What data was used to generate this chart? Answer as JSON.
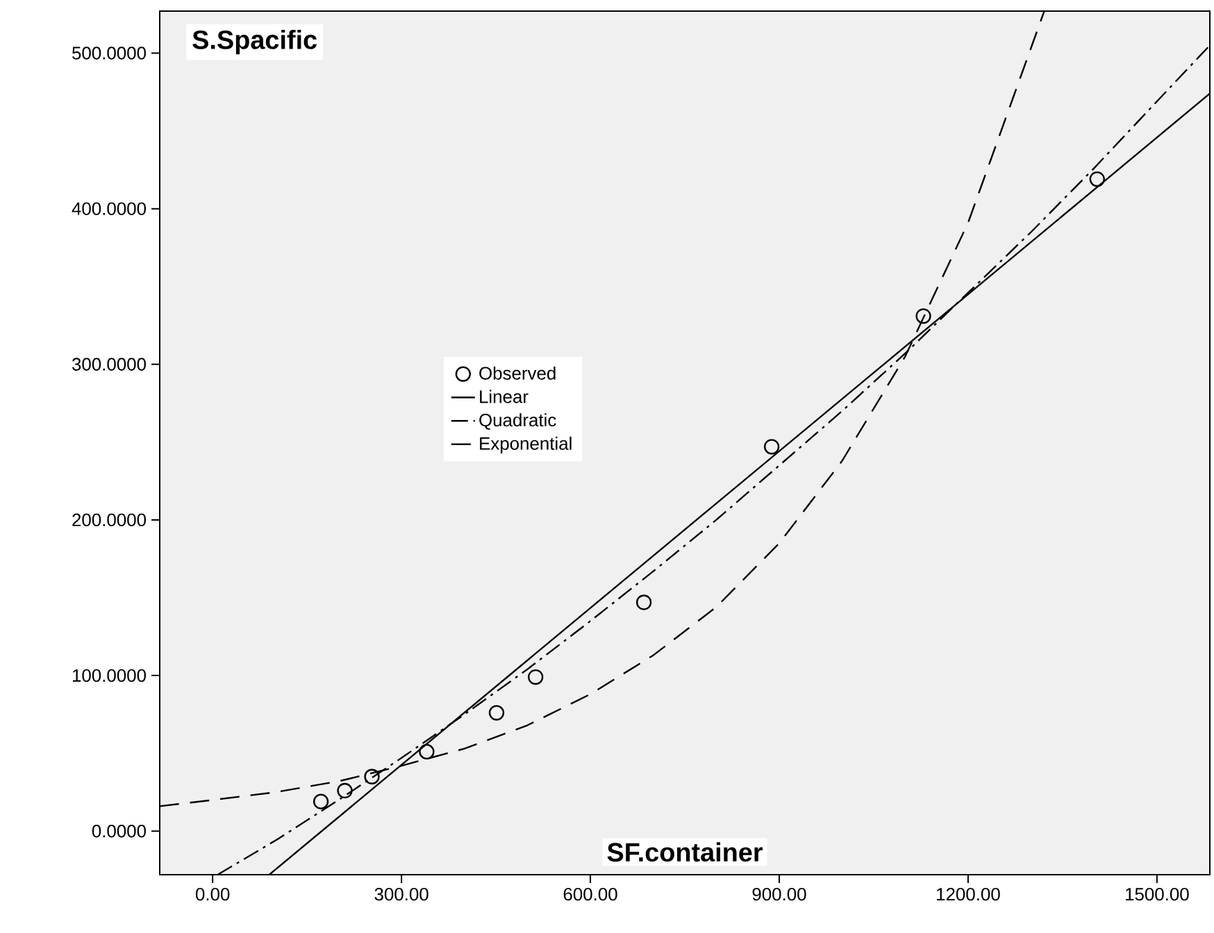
{
  "chart_data": {
    "type": "scatter",
    "xlabel": "SF.container",
    "ylabel": "S.Spacific",
    "xlim": [
      -84,
      1584
    ],
    "ylim": [
      -28,
      527
    ],
    "xticks": [
      {
        "value": 0,
        "label": "0.00"
      },
      {
        "value": 300,
        "label": "300.00"
      },
      {
        "value": 600,
        "label": "600.00"
      },
      {
        "value": 900,
        "label": "900.00"
      },
      {
        "value": 1200,
        "label": "1200.00"
      },
      {
        "value": 1500,
        "label": "1500.00"
      }
    ],
    "yticks": [
      {
        "value": 0,
        "label": "0.0000"
      },
      {
        "value": 100,
        "label": "100.0000"
      },
      {
        "value": 200,
        "label": "200.0000"
      },
      {
        "value": 300,
        "label": "300.0000"
      },
      {
        "value": 400,
        "label": "400.0000"
      },
      {
        "value": 500,
        "label": "500.0000"
      }
    ],
    "legend": "left",
    "grid": false,
    "series": [
      {
        "name": "Observed",
        "marker": "circle",
        "color": "#000000",
        "x": [
          172,
          210,
          253,
          340,
          451,
          513,
          685,
          888,
          1129,
          1405
        ],
        "values": [
          19,
          26,
          35,
          51,
          76,
          99,
          147,
          247,
          331,
          419
        ]
      },
      {
        "name": "Linear",
        "type": "line",
        "marker": "none",
        "line_style": "solid",
        "color": "#000000",
        "x": [
          90,
          1584
        ],
        "values": [
          -28,
          474
        ]
      },
      {
        "name": "Quadratic",
        "type": "line",
        "marker": "none",
        "line_style": "dashdot",
        "color": "#000000",
        "x": [
          8,
          100,
          200,
          300,
          400,
          500,
          600,
          700,
          800,
          900,
          1000,
          1100,
          1200,
          1300,
          1400,
          1500,
          1584
        ],
        "values": [
          -28,
          -6,
          20,
          47,
          75,
          104,
          135,
          167,
          200,
          235,
          270,
          307,
          346,
          385,
          426,
          469,
          505
        ]
      },
      {
        "name": "Exponential",
        "type": "line",
        "marker": "none",
        "line_style": "dashed",
        "color": "#000000",
        "x": [
          -84,
          0,
          100,
          200,
          300,
          400,
          500,
          600,
          700,
          800,
          900,
          1000,
          1100,
          1200,
          1321
        ],
        "values": [
          16,
          20,
          25,
          32,
          42,
          53,
          68,
          88,
          113,
          144,
          185,
          238,
          305,
          391,
          527
        ]
      }
    ]
  }
}
